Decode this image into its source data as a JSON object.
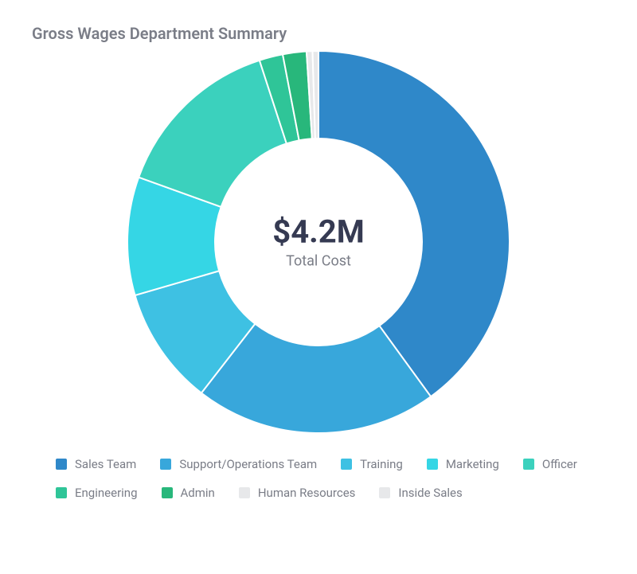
{
  "title": "Gross Wages Department Summary",
  "chart": {
    "type": "donut",
    "center_value": "$4.2M",
    "center_label": "Total Cost",
    "center_value_fontsize": 40,
    "center_value_color": "#353a52",
    "center_label_fontsize": 18,
    "center_label_color": "#7a7d87",
    "background_color": "#ffffff",
    "outer_radius": 240,
    "inner_radius": 130,
    "start_angle_deg": 0,
    "slice_stroke": "#ffffff",
    "slice_stroke_width": 2,
    "slices": [
      {
        "label": "Sales Team",
        "value": 40.0,
        "color": "#2f88c9"
      },
      {
        "label": "Support/Operations Team",
        "value": 20.5,
        "color": "#38a7db"
      },
      {
        "label": "Training",
        "value": 10.0,
        "color": "#3ec1e3"
      },
      {
        "label": "Marketing",
        "value": 10.0,
        "color": "#35d6e5"
      },
      {
        "label": "Officer",
        "value": 14.5,
        "color": "#3bd1bd"
      },
      {
        "label": "Engineering",
        "value": 2.0,
        "color": "#2fc598"
      },
      {
        "label": "Admin",
        "value": 2.0,
        "color": "#28b77b"
      },
      {
        "label": "Human Resources",
        "value": 0.5,
        "color": "#e7e8ea"
      },
      {
        "label": "Inside Sales",
        "value": 0.5,
        "color": "#e7e8ea"
      }
    ]
  },
  "legend": {
    "label_fontsize": 15,
    "label_color": "#7a7d87",
    "swatch_size": 14
  }
}
